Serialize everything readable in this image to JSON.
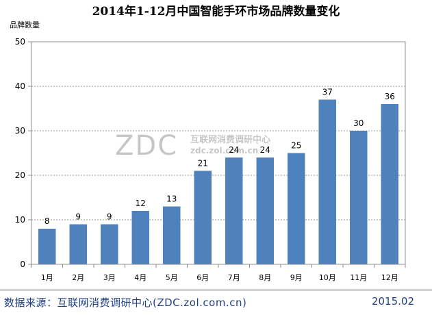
{
  "chart_data": {
    "type": "bar",
    "title": "2014年1-12月中国智能手环市场品牌数量变化",
    "ylabel": "品牌数量",
    "xlabel": "",
    "categories": [
      "1月",
      "2月",
      "3月",
      "4月",
      "5月",
      "6月",
      "7月",
      "8月",
      "9月",
      "10月",
      "11月",
      "12月"
    ],
    "values": [
      8,
      9,
      9,
      12,
      13,
      21,
      24,
      24,
      25,
      37,
      30,
      36
    ],
    "ylim": [
      0,
      50
    ],
    "yticks": [
      0,
      10,
      20,
      30,
      40,
      50
    ],
    "grid": "horizontal-dashed",
    "legend": "none",
    "bar_color": "#4f81bd"
  },
  "watermark": {
    "logo": "ZDC",
    "name": "互联网消费调研中心",
    "site": "zdc.zol.com.cn"
  },
  "footer": {
    "source": "数据来源：互联网消费调研中心(ZDC.zol.com.cn)",
    "date": "2015.02"
  }
}
